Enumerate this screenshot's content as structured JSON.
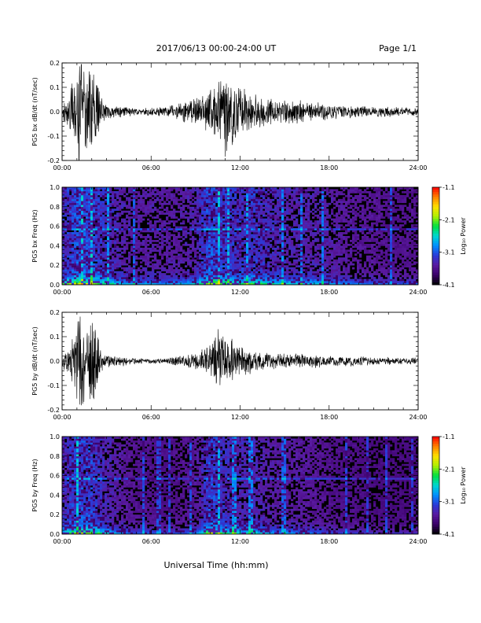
{
  "header": {
    "title": "2017/06/13  00:00-24:00 UT",
    "page": "Page 1/1"
  },
  "footer": {
    "xlabel": "Universal Time (hh:mm)"
  },
  "chart_data": [
    {
      "type": "line",
      "ylabel": "PG5 bx dB/dt (nT/sec)",
      "xlim": [
        0,
        24
      ],
      "ylim": [
        -0.2,
        0.2
      ],
      "x_ticks": [
        "00:00",
        "06:00",
        "12:00",
        "18:00",
        "24:00"
      ],
      "y_ticks": [
        "-0.2",
        "-0.1",
        "0.0",
        "0.1",
        "0.2"
      ],
      "series": [
        {
          "x": [
            0.0,
            0.5,
            1.0,
            1.3,
            1.6,
            2.0,
            2.3,
            2.6,
            3.0,
            4.0,
            5.0,
            6.0,
            7.0,
            8.0,
            9.0,
            10.0,
            10.5,
            11.0,
            11.5,
            12.0,
            12.5,
            13.0,
            14.0,
            15.0,
            16.0,
            17.0,
            18.0,
            19.0,
            20.0,
            21.0,
            22.0,
            23.0,
            24.0
          ],
          "amplitude": [
            0.03,
            0.06,
            0.2,
            0.2,
            0.12,
            0.2,
            0.17,
            0.06,
            0.03,
            0.02,
            0.015,
            0.015,
            0.02,
            0.035,
            0.05,
            0.08,
            0.13,
            0.17,
            0.12,
            0.09,
            0.08,
            0.07,
            0.05,
            0.05,
            0.04,
            0.035,
            0.03,
            0.025,
            0.025,
            0.02,
            0.02,
            0.015,
            0.015
          ]
        }
      ]
    },
    {
      "type": "heatmap",
      "ylabel": "PG5 bx Freq (Hz)",
      "xlim": [
        0,
        24
      ],
      "ylim": [
        0.0,
        1.0
      ],
      "x_ticks": [
        "00:00",
        "06:00",
        "12:00",
        "18:00",
        "24:00"
      ],
      "y_ticks": [
        "0.0",
        "0.2",
        "0.4",
        "0.6",
        "0.8",
        "1.0"
      ],
      "colorbar": {
        "label": "Log₁₀ Power",
        "range": [
          -4.1,
          -1.1
        ],
        "ticks": [
          "-1.1",
          "-2.1",
          "-3.1",
          "-4.1"
        ],
        "colors": [
          "#000000",
          "#3a0068",
          "#5a1aa0",
          "#2a3ad8",
          "#0090ff",
          "#00d8d0",
          "#00e040",
          "#b0f000",
          "#ffe000",
          "#ff8000",
          "#ff0000"
        ]
      },
      "activity": {
        "hours": [
          0,
          1,
          2,
          3,
          4,
          5,
          6,
          7,
          8,
          9,
          10,
          11,
          12,
          13,
          14,
          15,
          16,
          17,
          18,
          19,
          20,
          21,
          22,
          23,
          24
        ],
        "level": [
          0.7,
          0.95,
          0.9,
          0.7,
          0.55,
          0.45,
          0.5,
          0.45,
          0.5,
          0.55,
          0.95,
          0.8,
          0.7,
          0.8,
          0.65,
          0.6,
          0.55,
          0.55,
          0.5,
          0.45,
          0.4,
          0.4,
          0.35,
          0.35,
          0.35
        ]
      },
      "line_frequency_hz": 0.57
    },
    {
      "type": "line",
      "ylabel": "PG5 by dB/dt (nT/sec)",
      "xlim": [
        0,
        24
      ],
      "ylim": [
        -0.2,
        0.2
      ],
      "x_ticks": [
        "00:00",
        "06:00",
        "12:00",
        "18:00",
        "24:00"
      ],
      "y_ticks": [
        "-0.2",
        "-0.1",
        "0.0",
        "0.1",
        "0.2"
      ],
      "series": [
        {
          "x": [
            0.0,
            0.5,
            1.0,
            1.3,
            1.6,
            2.0,
            2.3,
            2.6,
            3.0,
            4.0,
            5.0,
            6.0,
            7.0,
            8.0,
            9.0,
            10.0,
            10.5,
            11.0,
            11.5,
            12.0,
            12.5,
            13.0,
            14.0,
            15.0,
            16.0,
            17.0,
            18.0,
            19.0,
            20.0,
            21.0,
            22.0,
            23.0,
            24.0
          ],
          "amplitude": [
            0.03,
            0.05,
            0.2,
            0.2,
            0.1,
            0.2,
            0.16,
            0.04,
            0.025,
            0.02,
            0.01,
            0.01,
            0.012,
            0.02,
            0.03,
            0.06,
            0.12,
            0.1,
            0.08,
            0.06,
            0.05,
            0.04,
            0.03,
            0.03,
            0.03,
            0.025,
            0.02,
            0.02,
            0.02,
            0.015,
            0.015,
            0.012,
            0.012
          ]
        }
      ]
    },
    {
      "type": "heatmap",
      "ylabel": "PG5 by Freq (Hz)",
      "xlim": [
        0,
        24
      ],
      "ylim": [
        0.0,
        1.0
      ],
      "x_ticks": [
        "00:00",
        "06:00",
        "12:00",
        "18:00",
        "24:00"
      ],
      "y_ticks": [
        "0.0",
        "0.2",
        "0.4",
        "0.6",
        "0.8",
        "1.0"
      ],
      "colorbar": {
        "label": "Log₁₀ Power",
        "range": [
          -4.1,
          -1.1
        ],
        "ticks": [
          "-1.1",
          "-2.1",
          "-3.1",
          "-4.1"
        ],
        "colors": [
          "#000000",
          "#3a0068",
          "#5a1aa0",
          "#2a3ad8",
          "#0090ff",
          "#00d8d0",
          "#00e040",
          "#b0f000",
          "#ffe000",
          "#ff8000",
          "#ff0000"
        ]
      },
      "activity": {
        "hours": [
          0,
          1,
          2,
          3,
          4,
          5,
          6,
          7,
          8,
          9,
          10,
          11,
          12,
          13,
          14,
          15,
          16,
          17,
          18,
          19,
          20,
          21,
          22,
          23,
          24
        ],
        "level": [
          0.6,
          0.9,
          0.85,
          0.6,
          0.45,
          0.35,
          0.35,
          0.3,
          0.35,
          0.4,
          0.9,
          0.7,
          0.6,
          0.6,
          0.5,
          0.45,
          0.45,
          0.4,
          0.35,
          0.3,
          0.3,
          0.25,
          0.25,
          0.25,
          0.25
        ]
      },
      "line_frequency_hz": 0.57
    }
  ]
}
